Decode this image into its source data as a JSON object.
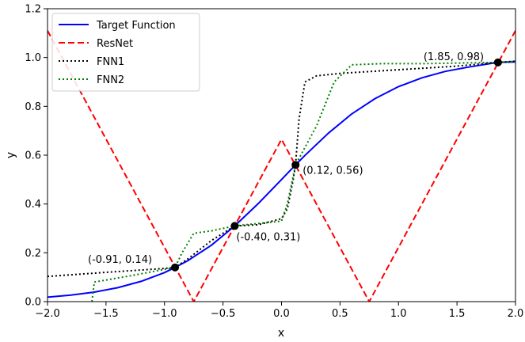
{
  "chart_data": {
    "type": "line",
    "xlabel": "x",
    "ylabel": "y",
    "xlim": [
      -2.0,
      2.0
    ],
    "ylim": [
      0.0,
      1.2
    ],
    "grid": false,
    "legend_placement": "top-left",
    "xticks": [
      -2.0,
      -1.5,
      -1.0,
      -0.5,
      0.0,
      0.5,
      1.0,
      1.5,
      2.0
    ],
    "xtick_labels": [
      "−2.0",
      "−1.5",
      "−1.0",
      "−0.5",
      "0.0",
      "0.5",
      "1.0",
      "1.5",
      "2.0"
    ],
    "yticks": [
      0.0,
      0.2,
      0.4,
      0.6,
      0.8,
      1.0,
      1.2
    ],
    "ytick_labels": [
      "0.0",
      "0.2",
      "0.4",
      "0.6",
      "0.8",
      "1.0",
      "1.2"
    ],
    "series": [
      {
        "name": "Target Function",
        "color": "#0000ff",
        "style": "solid",
        "x": [
          -2.0,
          -1.8,
          -1.6,
          -1.4,
          -1.2,
          -1.0,
          -0.91,
          -0.8,
          -0.6,
          -0.4,
          -0.2,
          0.0,
          0.12,
          0.2,
          0.4,
          0.6,
          0.8,
          1.0,
          1.2,
          1.4,
          1.6,
          1.85,
          2.0
        ],
        "y": [
          0.018,
          0.027,
          0.039,
          0.057,
          0.083,
          0.119,
          0.14,
          0.168,
          0.231,
          0.31,
          0.401,
          0.5,
          0.56,
          0.599,
          0.69,
          0.769,
          0.832,
          0.881,
          0.917,
          0.943,
          0.961,
          0.98,
          0.982
        ]
      },
      {
        "name": "ResNet",
        "color": "#ff0000",
        "style": "dashed",
        "x": [
          -2.0,
          -0.75,
          0.0,
          0.75,
          2.0
        ],
        "y": [
          1.11,
          0.0,
          0.665,
          0.0,
          1.11
        ]
      },
      {
        "name": "FNN1",
        "color": "#000000",
        "style": "dotted",
        "x": [
          -2.0,
          -1.5,
          -1.0,
          -0.91,
          -0.8,
          -0.6,
          -0.4,
          -0.2,
          0.0,
          0.05,
          0.1,
          0.12,
          0.15,
          0.2,
          0.3,
          0.5,
          1.0,
          1.5,
          1.85,
          2.0
        ],
        "y": [
          0.103,
          0.12,
          0.136,
          0.14,
          0.175,
          0.25,
          0.31,
          0.315,
          0.34,
          0.38,
          0.5,
          0.56,
          0.75,
          0.9,
          0.925,
          0.935,
          0.95,
          0.965,
          0.98,
          0.985
        ]
      },
      {
        "name": "FNN2",
        "color": "#008000",
        "style": "dotted",
        "x": [
          -1.62,
          -1.6,
          -1.3,
          -0.91,
          -0.85,
          -0.75,
          -0.6,
          -0.4,
          0.0,
          0.05,
          0.12,
          0.3,
          0.45,
          0.6,
          0.85,
          1.2,
          1.6,
          1.85,
          2.0
        ],
        "y": [
          0.0,
          0.08,
          0.105,
          0.14,
          0.2,
          0.28,
          0.29,
          0.31,
          0.33,
          0.4,
          0.56,
          0.72,
          0.9,
          0.97,
          0.975,
          0.975,
          0.978,
          0.98,
          0.985
        ]
      }
    ],
    "annotations": [
      {
        "x": -0.91,
        "y": 0.14,
        "text": "(-0.91, 0.14)"
      },
      {
        "x": -0.4,
        "y": 0.31,
        "text": "(-0.40, 0.31)"
      },
      {
        "x": 0.12,
        "y": 0.56,
        "text": "(0.12, 0.56)"
      },
      {
        "x": 1.85,
        "y": 0.98,
        "text": "(1.85, 0.98)"
      }
    ]
  }
}
